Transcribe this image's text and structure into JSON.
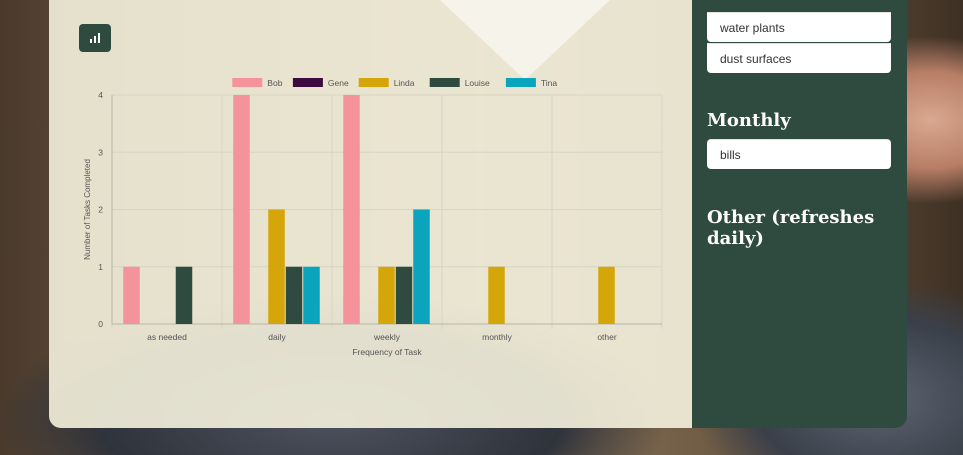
{
  "sidebar": {
    "weekly_items": [
      "water plants",
      "dust surfaces"
    ],
    "monthly_title": "Monthly",
    "monthly_items": [
      "bills"
    ],
    "other_title": "Other (refreshes daily)"
  },
  "colors": {
    "sidebar_bg": "#2f4a3e",
    "Bob": "#f4939a",
    "Gene": "#3d0b3f",
    "Linda": "#d4a60a",
    "Louise": "#2f4a3e",
    "Tina": "#0aa4bd"
  },
  "icons": {
    "chart_toggle": "bar-chart-icon"
  },
  "chart_data": {
    "type": "bar",
    "categories": [
      "as needed",
      "daily",
      "weekly",
      "monthly",
      "other"
    ],
    "series": [
      {
        "name": "Bob",
        "values": [
          1,
          4,
          4,
          0,
          0
        ]
      },
      {
        "name": "Gene",
        "values": [
          0,
          0,
          0,
          0,
          0
        ]
      },
      {
        "name": "Linda",
        "values": [
          0,
          2,
          1,
          1,
          1
        ]
      },
      {
        "name": "Louise",
        "values": [
          1,
          1,
          1,
          0,
          0
        ]
      },
      {
        "name": "Tina",
        "values": [
          0,
          1,
          2,
          0,
          0
        ]
      }
    ],
    "xlabel": "Frequency of Task",
    "ylabel": "Number of Tasks Completed",
    "ylim": [
      0,
      4
    ],
    "yticks": [
      0,
      1,
      2,
      3,
      4
    ],
    "grid": true,
    "legend": "top-center"
  }
}
